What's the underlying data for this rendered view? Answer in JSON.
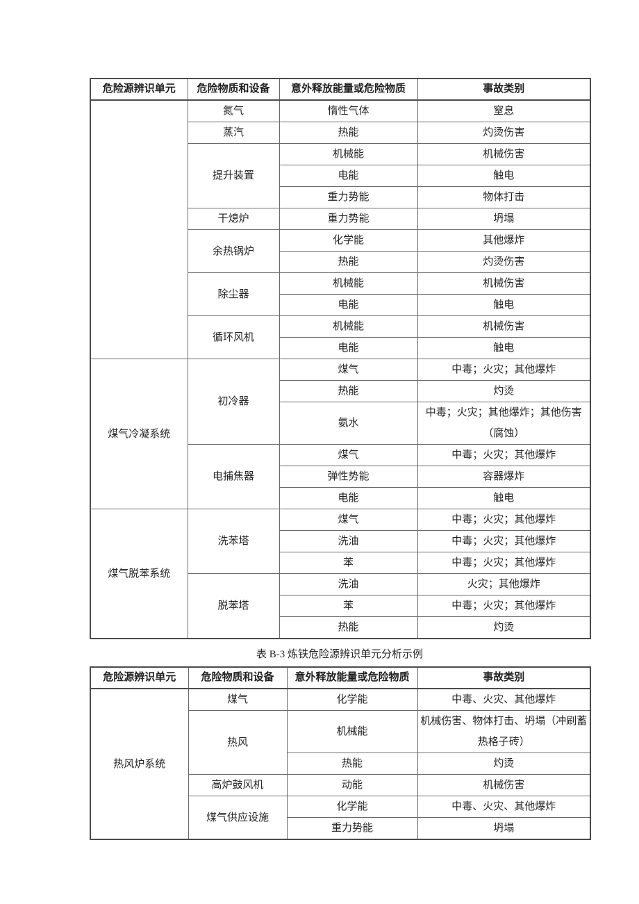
{
  "colors": {
    "background": "#ffffff",
    "text": "#262626",
    "border_thin": "#6a6a6a",
    "border_thick": "#4c4c4c"
  },
  "caption": "表 B-3 炼铁危险源辨识单元分析示例",
  "table1": {
    "headers": [
      "危险源辨识单元",
      "危险物质和设备",
      "意外释放能量或危险物质",
      "事故类别"
    ],
    "sections": [
      {
        "unit": "",
        "groups": [
          {
            "equipment": "氮气",
            "rows": [
              {
                "energy": "惰性气体",
                "accident": "窒息"
              }
            ]
          },
          {
            "equipment": "蒸汽",
            "rows": [
              {
                "energy": "热能",
                "accident": "灼烫伤害"
              }
            ]
          },
          {
            "equipment": "提升装置",
            "rows": [
              {
                "energy": "机械能",
                "accident": "机械伤害"
              },
              {
                "energy": "电能",
                "accident": "触电"
              },
              {
                "energy": "重力势能",
                "accident": "物体打击"
              }
            ]
          },
          {
            "equipment": "干熄炉",
            "rows": [
              {
                "energy": "重力势能",
                "accident": "坍塌"
              }
            ]
          },
          {
            "equipment": "余热锅炉",
            "rows": [
              {
                "energy": "化学能",
                "accident": "其他爆炸"
              },
              {
                "energy": "热能",
                "accident": "灼烫伤害"
              }
            ]
          },
          {
            "equipment": "除尘器",
            "rows": [
              {
                "energy": "机械能",
                "accident": "机械伤害"
              },
              {
                "energy": "电能",
                "accident": "触电"
              }
            ]
          },
          {
            "equipment": "循环风机",
            "rows": [
              {
                "energy": "机械能",
                "accident": "机械伤害"
              },
              {
                "energy": "电能",
                "accident": "触电"
              }
            ]
          }
        ]
      },
      {
        "unit": "煤气冷凝系统",
        "groups": [
          {
            "equipment": "初冷器",
            "rows": [
              {
                "energy": "煤气",
                "accident": "中毒；火灾；其他爆炸"
              },
              {
                "energy": "热能",
                "accident": "灼烫"
              },
              {
                "energy": "氨水",
                "accident": "中毒；火灾；其他爆炸；其他伤害\n（腐蚀）"
              }
            ]
          },
          {
            "equipment": "电捕焦器",
            "rows": [
              {
                "energy": "煤气",
                "accident": "中毒；火灾；其他爆炸"
              },
              {
                "energy": "弹性势能",
                "accident": "容器爆炸"
              },
              {
                "energy": "电能",
                "accident": "触电"
              }
            ]
          }
        ]
      },
      {
        "unit": "煤气脱苯系统",
        "groups": [
          {
            "equipment": "洗苯塔",
            "rows": [
              {
                "energy": "煤气",
                "accident": "中毒；火灾；其他爆炸"
              },
              {
                "energy": "洗油",
                "accident": "中毒；火灾；其他爆炸"
              },
              {
                "energy": "苯",
                "accident": "中毒；火灾；其他爆炸"
              }
            ]
          },
          {
            "equipment": "脱苯塔",
            "rows": [
              {
                "energy": "洗油",
                "accident": "火灾；其他爆炸"
              },
              {
                "energy": "苯",
                "accident": "中毒；火灾；其他爆炸"
              },
              {
                "energy": "热能",
                "accident": "灼烫"
              }
            ]
          }
        ]
      }
    ]
  },
  "table2": {
    "headers": [
      "危险源辨识单元",
      "危险物质和设备",
      "意外释放能量或危险物质",
      "事故类别"
    ],
    "sections": [
      {
        "unit": "热风炉系统",
        "groups": [
          {
            "equipment": "煤气",
            "rows": [
              {
                "energy": "化学能",
                "accident": "中毒、火灾、其他爆炸"
              }
            ]
          },
          {
            "equipment": "热风",
            "rows": [
              {
                "energy": "机械能",
                "accident": "机械伤害、物体打击、坍塌（冲刷蓄\n热格子砖）"
              },
              {
                "energy": "热能",
                "accident": "灼烫"
              }
            ]
          },
          {
            "equipment": "高炉鼓风机",
            "rows": [
              {
                "energy": "动能",
                "accident": "机械伤害"
              }
            ]
          },
          {
            "equipment": "煤气供应设施",
            "rows": [
              {
                "energy": "化学能",
                "accident": "中毒、火灾、其他爆炸"
              },
              {
                "energy": "重力势能",
                "accident": "坍塌"
              }
            ]
          }
        ]
      }
    ]
  }
}
